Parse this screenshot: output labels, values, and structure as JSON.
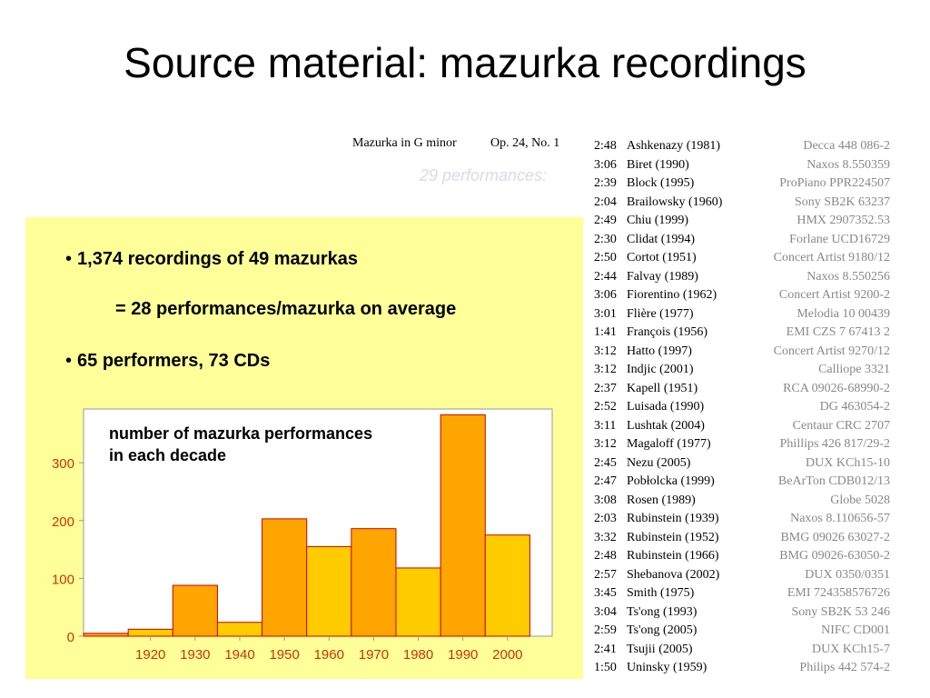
{
  "slide": {
    "title": "Source material: mazurka recordings",
    "bullets": [
      "1,374 recordings of 49 mazurkas",
      "= 28 performances/mazurka on average",
      "65 performers, 73 CDs"
    ],
    "bullet_glyph": "•"
  },
  "recordings": {
    "header": {
      "piece": "Mazurka in G   minor",
      "opus": "Op. 24, No. 1"
    },
    "count_note": "29 performances:",
    "rows": [
      {
        "time": "2:48",
        "performer": "Ashkenazy (1981)",
        "label": "Decca 448 086-2"
      },
      {
        "time": "3:06",
        "performer": "Biret (1990)",
        "label": "Naxos 8.550359"
      },
      {
        "time": "2:39",
        "performer": "Block (1995)",
        "label": "ProPiano PPR224507"
      },
      {
        "time": "2:04",
        "performer": "Brailowsky (1960)",
        "label": "Sony SB2K 63237"
      },
      {
        "time": "2:49",
        "performer": "Chiu (1999)",
        "label": "HMX 2907352.53"
      },
      {
        "time": "2:30",
        "performer": "Clidat (1994)",
        "label": "Forlane UCD16729"
      },
      {
        "time": "2:50",
        "performer": "Cortot (1951)",
        "label": "Concert Artist 9180/12"
      },
      {
        "time": "2:44",
        "performer": "Falvay (1989)",
        "label": "Naxos 8.550256"
      },
      {
        "time": "3:06",
        "performer": "Fiorentino (1962)",
        "label": "Concert Artist 9200-2"
      },
      {
        "time": "3:01",
        "performer": "Flière (1977)",
        "label": "Melodia 10 00439"
      },
      {
        "time": "1:41",
        "performer": "François (1956)",
        "label": "EMI CZS 7 67413 2"
      },
      {
        "time": "3:12",
        "performer": "Hatto (1997)",
        "label": "Concert Artist 9270/12"
      },
      {
        "time": "3:12",
        "performer": "Indjic (2001)",
        "label": "Calliope 3321"
      },
      {
        "time": "2:37",
        "performer": "Kapell (1951)",
        "label": "RCA 09026-68990-2"
      },
      {
        "time": "2:52",
        "performer": "Luisada (1990)",
        "label": "DG 463054-2"
      },
      {
        "time": "3:11",
        "performer": "Lushtak (2004)",
        "label": "Centaur CRC 2707"
      },
      {
        "time": "3:12",
        "performer": "Magaloff (1977)",
        "label": "Phillips 426 817/29-2"
      },
      {
        "time": "2:45",
        "performer": "Nezu (2005)",
        "label": "DUX KCh15-10"
      },
      {
        "time": "2:47",
        "performer": "Pobłolcka (1999)",
        "label": "BeArTon CDB012/13"
      },
      {
        "time": "3:08",
        "performer": "Rosen (1989)",
        "label": "Globe 5028"
      },
      {
        "time": "2:03",
        "performer": "Rubinstein (1939)",
        "label": "Naxos 8.110656-57"
      },
      {
        "time": "3:32",
        "performer": "Rubinstein (1952)",
        "label": "BMG 09026 63027-2"
      },
      {
        "time": "2:48",
        "performer": "Rubinstein (1966)",
        "label": "BMG 09026-63050-2"
      },
      {
        "time": "2:57",
        "performer": "Shebanova (2002)",
        "label": "DUX 0350/0351"
      },
      {
        "time": "3:45",
        "performer": "Smith (1975)",
        "label": "EMI 724358576726"
      },
      {
        "time": "3:04",
        "performer": "Ts'ong (1993)",
        "label": "Sony SB2K 53 246"
      },
      {
        "time": "2:59",
        "performer": "Ts'ong (2005)",
        "label": "NIFC CD001"
      },
      {
        "time": "2:41",
        "performer": "Tsujii (2005)",
        "label": "DUX KCh15-7"
      },
      {
        "time": "1:50",
        "performer": "Uninsky (1959)",
        "label": "Philips 442 574-2"
      }
    ]
  },
  "chart_data": {
    "type": "bar",
    "title": "number of mazurka performances in each decade",
    "title_lines": [
      "number of mazurka performances",
      "in each decade"
    ],
    "xlabel": "",
    "ylabel": "",
    "x_ticks": [
      "1920",
      "1930",
      "1940",
      "1950",
      "1960",
      "1970",
      "1980",
      "1990",
      "2000"
    ],
    "y_ticks": [
      "0",
      "100",
      "200",
      "300"
    ],
    "bin_edges": [
      1905,
      1915,
      1925,
      1935,
      1945,
      1955,
      1965,
      1975,
      1985,
      1995,
      2005
    ],
    "values": [
      5,
      12,
      88,
      24,
      203,
      155,
      186,
      118,
      383,
      175
    ],
    "xlim": [
      1905,
      2010
    ],
    "ylim": [
      0,
      393
    ],
    "grid": false,
    "colors": {
      "bar_a": "#ffa500",
      "bar_b": "#ffcc00",
      "bar_edge": "#cc0000",
      "tick_text": "#cc3300",
      "axis": "#999999",
      "plot_bg": "#ffffff"
    }
  },
  "colors": {
    "highlight_bg": "#ffff99",
    "note_text": "#d9d9ee",
    "label_text": "#888888"
  }
}
